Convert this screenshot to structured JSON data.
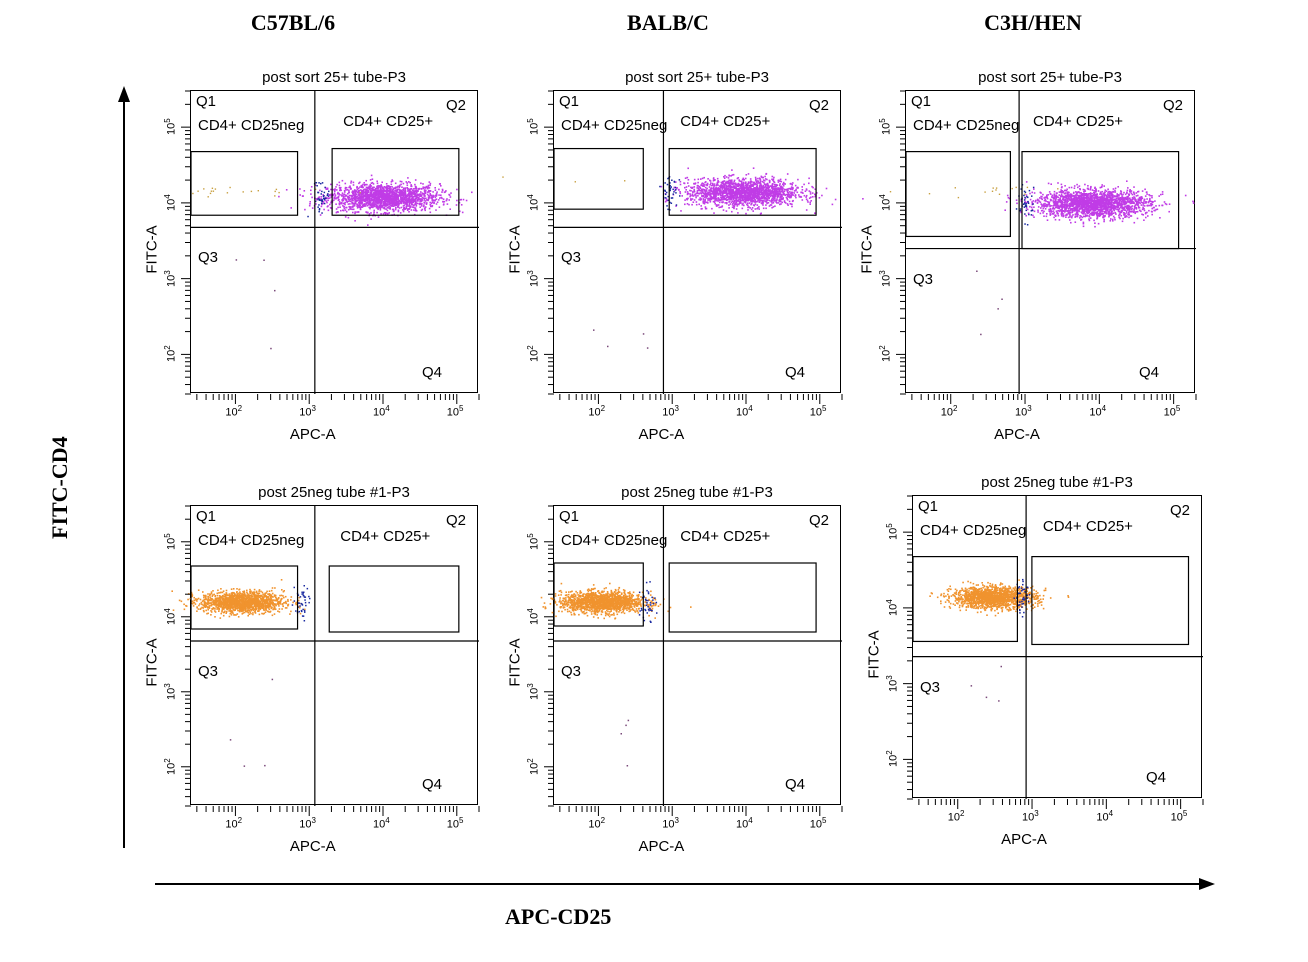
{
  "strains": [
    "C57BL/6",
    "BALB/C",
    "C3H/HEN"
  ],
  "y_axis_title": "FITC-CD4",
  "x_axis_title": "APC-CD25",
  "colors": {
    "cd25pos": "#c03ce6",
    "cd25neg": "#f0932e",
    "cd25neg_sparse": "#c8a040",
    "dark": "#1a2aa0",
    "lines": "#000000"
  },
  "chart_data": [
    {
      "type": "scatter",
      "strain": "C57BL/6",
      "title": "post sort 25+ tube-P3",
      "xlabel": "APC-A",
      "ylabel": "FITC-A",
      "xscale": "log",
      "yscale": "log",
      "xlim": [
        25,
        200000
      ],
      "ylim": [
        30,
        300000
      ],
      "xticks": [
        100,
        1000,
        10000,
        100000
      ],
      "yticks": [
        100,
        1000,
        10000,
        100000
      ],
      "tick_labels": [
        "10",
        "10",
        "10",
        "10"
      ],
      "tick_exponents": [
        "2",
        "3",
        "4",
        "5"
      ],
      "quadrants": [
        "Q1",
        "Q2",
        "Q3",
        "Q4"
      ],
      "gates": [
        "CD4+ CD25neg",
        "CD4+ CD25+"
      ],
      "populations": [
        {
          "name": "CD4+ CD25+",
          "center": [
            10000,
            12000
          ],
          "count": 1800
        },
        {
          "name": "CD4+ CD25neg",
          "center": [
            150,
            15000
          ],
          "count": 20
        }
      ]
    },
    {
      "type": "scatter",
      "strain": "BALB/C",
      "title": "post sort 25+ tube-P3",
      "xlabel": "APC-A",
      "ylabel": "FITC-A",
      "xscale": "log",
      "yscale": "log",
      "xlim": [
        25,
        200000
      ],
      "ylim": [
        30,
        300000
      ],
      "xticks": [
        100,
        1000,
        10000,
        100000
      ],
      "yticks": [
        100,
        1000,
        10000,
        100000
      ],
      "tick_labels": [
        "10",
        "10",
        "10",
        "10"
      ],
      "tick_exponents": [
        "2",
        "3",
        "4",
        "5"
      ],
      "quadrants": [
        "Q1",
        "Q2",
        "Q3",
        "Q4"
      ],
      "gates": [
        "CD4+ CD25neg",
        "CD4+ CD25+"
      ],
      "populations": [
        {
          "name": "CD4+ CD25+",
          "center": [
            9000,
            14000
          ],
          "count": 1800
        },
        {
          "name": "CD4+ CD25neg",
          "center": [
            80,
            20000
          ],
          "count": 3
        }
      ]
    },
    {
      "type": "scatter",
      "strain": "C3H/HEN",
      "title": "post sort 25+ tube-P3",
      "xlabel": "APC-A",
      "ylabel": "FITC-A",
      "xscale": "log",
      "yscale": "log",
      "xlim": [
        25,
        200000
      ],
      "ylim": [
        30,
        300000
      ],
      "xticks": [
        100,
        1000,
        10000,
        100000
      ],
      "yticks": [
        100,
        1000,
        10000,
        100000
      ],
      "tick_labels": [
        "10",
        "10",
        "10",
        "10"
      ],
      "tick_exponents": [
        "2",
        "3",
        "4",
        "5"
      ],
      "quadrants": [
        "Q1",
        "Q2",
        "Q3",
        "Q4"
      ],
      "gates": [
        "CD4+ CD25neg",
        "CD4+ CD25+"
      ],
      "populations": [
        {
          "name": "CD4+ CD25+",
          "center": [
            8000,
            10000
          ],
          "count": 2000
        },
        {
          "name": "CD4+ CD25neg",
          "center": [
            300,
            15000
          ],
          "count": 15
        }
      ]
    },
    {
      "type": "scatter",
      "strain": "C57BL/6",
      "title": "post 25neg tube #1-P3",
      "xlabel": "APC-A",
      "ylabel": "FITC-A",
      "xscale": "log",
      "yscale": "log",
      "xlim": [
        25,
        200000
      ],
      "ylim": [
        30,
        300000
      ],
      "xticks": [
        100,
        1000,
        10000,
        100000
      ],
      "yticks": [
        100,
        1000,
        10000,
        100000
      ],
      "tick_labels": [
        "10",
        "10",
        "10",
        "10"
      ],
      "tick_exponents": [
        "2",
        "3",
        "4",
        "5"
      ],
      "quadrants": [
        "Q1",
        "Q2",
        "Q3",
        "Q4"
      ],
      "gates": [
        "CD4+ CD25neg",
        "CD4+ CD25+"
      ],
      "populations": [
        {
          "name": "CD4+ CD25neg",
          "center": [
            120,
            16000
          ],
          "count": 1500
        }
      ]
    },
    {
      "type": "scatter",
      "strain": "BALB/C",
      "title": "post 25neg tube #1-P3",
      "xlabel": "APC-A",
      "ylabel": "FITC-A",
      "xscale": "log",
      "yscale": "log",
      "xlim": [
        25,
        200000
      ],
      "ylim": [
        30,
        300000
      ],
      "xticks": [
        100,
        1000,
        10000,
        100000
      ],
      "yticks": [
        100,
        1000,
        10000,
        100000
      ],
      "tick_labels": [
        "10",
        "10",
        "10",
        "10"
      ],
      "tick_exponents": [
        "2",
        "3",
        "4",
        "5"
      ],
      "quadrants": [
        "Q1",
        "Q2",
        "Q3",
        "Q4"
      ],
      "gates": [
        "CD4+ CD25neg",
        "CD4+ CD25+"
      ],
      "populations": [
        {
          "name": "CD4+ CD25neg",
          "center": [
            110,
            16000
          ],
          "count": 1500
        }
      ]
    },
    {
      "type": "scatter",
      "strain": "C3H/HEN",
      "title": "post 25neg tube #1-P3",
      "xlabel": "APC-A",
      "ylabel": "FITC-A",
      "xscale": "log",
      "yscale": "log",
      "xlim": [
        25,
        200000
      ],
      "ylim": [
        30,
        300000
      ],
      "xticks": [
        100,
        1000,
        10000,
        100000
      ],
      "yticks": [
        100,
        1000,
        10000,
        100000
      ],
      "tick_labels": [
        "10",
        "10",
        "10",
        "10"
      ],
      "tick_exponents": [
        "2",
        "3",
        "4",
        "5"
      ],
      "quadrants": [
        "Q1",
        "Q2",
        "Q3",
        "Q4"
      ],
      "gates": [
        "CD4+ CD25neg",
        "CD4+ CD25+"
      ],
      "populations": [
        {
          "name": "CD4+ CD25neg",
          "center": [
            300,
            14000
          ],
          "count": 1500
        }
      ]
    }
  ]
}
